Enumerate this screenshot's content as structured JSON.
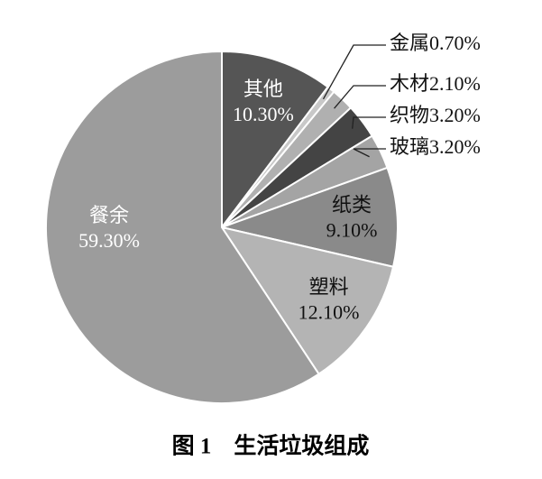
{
  "chart_data": {
    "type": "pie",
    "title": "图 1　生活垃圾组成",
    "categories": [
      "其他",
      "金属",
      "木材",
      "织物",
      "玻璃",
      "纸类",
      "塑料",
      "餐余"
    ],
    "values": [
      10.3,
      0.7,
      2.1,
      3.2,
      3.2,
      9.1,
      12.1,
      59.3
    ],
    "value_labels": [
      "10.30%",
      "0.70%",
      "2.10%",
      "3.20%",
      "3.20%",
      "9.10%",
      "12.10%",
      "59.30%"
    ],
    "colors": [
      "#555555",
      "#c8c8c8",
      "#b0b0b0",
      "#444444",
      "#a4a4a4",
      "#8a8a8a",
      "#b4b4b4",
      "#9c9c9c"
    ],
    "label_colors": [
      "#ffffff",
      "#111111",
      "#111111",
      "#111111",
      "#111111",
      "#111111",
      "#111111",
      "#ffffff"
    ]
  }
}
